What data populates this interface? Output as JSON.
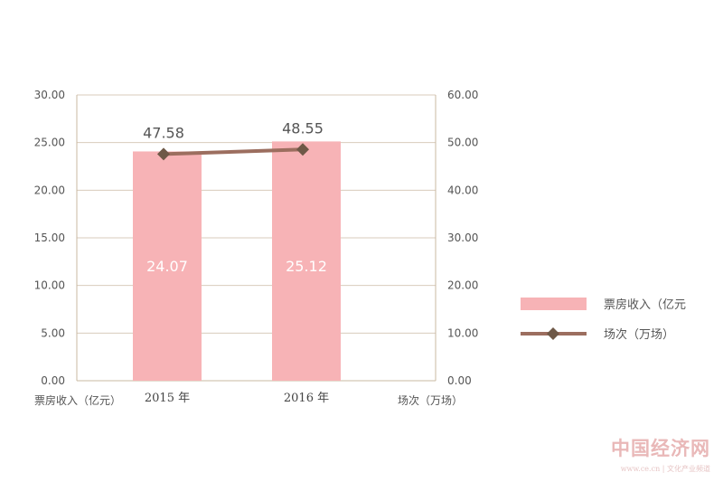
{
  "chart_data": {
    "type": "bar+line",
    "categories": [
      "2015 年",
      "2016 年"
    ],
    "series": [
      {
        "name": "票房收入（亿元",
        "type": "bar",
        "axis": "left",
        "values": [
          24.07,
          25.12
        ],
        "color": "#f7b3b6"
      },
      {
        "name": "场次（万场）",
        "type": "line",
        "axis": "right",
        "values": [
          47.58,
          48.55
        ],
        "color": "#9c6e5f",
        "marker_color": "#6e5847"
      }
    ],
    "left_axis": {
      "label": "票房收入（亿元）",
      "ylim": [
        0,
        30
      ],
      "ticks": [
        "0.00",
        "5.00",
        "10.00",
        "15.00",
        "20.00",
        "25.00",
        "30.00"
      ]
    },
    "right_axis": {
      "label": "场次（万场）",
      "ylim": [
        0,
        60
      ],
      "ticks": [
        "0.00",
        "10.00",
        "20.00",
        "30.00",
        "40.00",
        "50.00",
        "60.00"
      ]
    },
    "grid": true,
    "legend_position": "right",
    "bar_value_labels": [
      "24.07",
      "25.12"
    ],
    "line_value_labels": [
      "47.58",
      "48.55"
    ]
  },
  "watermark": {
    "title": "中国经济网",
    "subtitle": "www.ce.cn | 文化产业频道"
  },
  "colors": {
    "axis": "#c9b8a2",
    "grid": "#d8cbbb",
    "tick_text": "#555555",
    "bar_label": "#ffffff"
  }
}
